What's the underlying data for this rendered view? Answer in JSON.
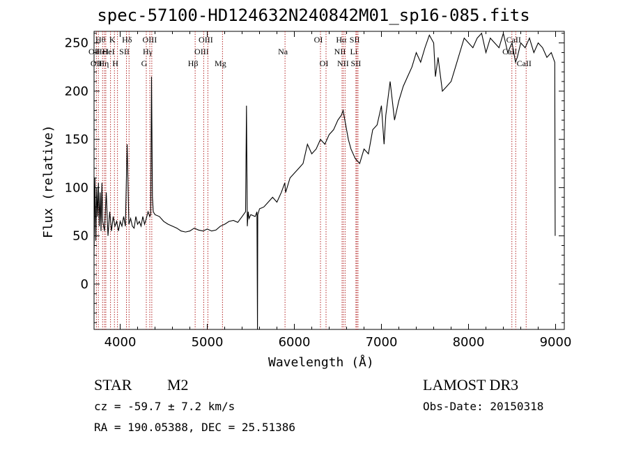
{
  "chart_data": {
    "type": "line",
    "title": "spec-57100-HD124632N240842M01_sp16-085.fits",
    "xlabel": "Wavelength (Å)",
    "ylabel": "Flux (relative)",
    "xlim": [
      3700,
      9100
    ],
    "ylim": [
      -47,
      262
    ],
    "xticks": [
      4000,
      5000,
      6000,
      7000,
      8000,
      9000
    ],
    "yticks": [
      0,
      50,
      100,
      150,
      200,
      250
    ],
    "grid": false,
    "series": [
      {
        "x": [
          3700,
          3710,
          3720,
          3730,
          3740,
          3750,
          3760,
          3770,
          3780,
          3790,
          3800,
          3820,
          3840,
          3860,
          3880,
          3900,
          3920,
          3940,
          3960,
          3980,
          4000,
          4020,
          4040,
          4060,
          4080,
          4100,
          4120,
          4140,
          4160,
          4180,
          4200,
          4220,
          4240,
          4260,
          4280,
          4300,
          4320,
          4340,
          4350,
          4360,
          4370,
          4380,
          4400,
          4450,
          4500,
          4550,
          4600,
          4650,
          4700,
          4750,
          4800,
          4850,
          4900,
          4950,
          5000,
          5050,
          5100,
          5150,
          5200,
          5250,
          5300,
          5350,
          5400,
          5440,
          5450,
          5460,
          5470,
          5480,
          5500,
          5550,
          5570,
          5577,
          5580,
          5590,
          5600,
          5650,
          5700,
          5750,
          5800,
          5850,
          5890,
          5900,
          5950,
          6000,
          6050,
          6100,
          6150,
          6200,
          6250,
          6300,
          6350,
          6400,
          6450,
          6500,
          6540,
          6560,
          6580,
          6600,
          6620,
          6650,
          6700,
          6750,
          6800,
          6850,
          6900,
          6950,
          7000,
          7030,
          7050,
          7100,
          7150,
          7200,
          7250,
          7300,
          7350,
          7400,
          7450,
          7500,
          7550,
          7600,
          7620,
          7650,
          7700,
          7750,
          7800,
          7850,
          7900,
          7950,
          8000,
          8050,
          8100,
          8150,
          8200,
          8250,
          8300,
          8350,
          8400,
          8450,
          8500,
          8540,
          8560,
          8600,
          8650,
          8700,
          8750,
          8800,
          8850,
          8900,
          8950,
          8990,
          8995
        ],
        "y": [
          30,
          110,
          45,
          100,
          70,
          105,
          60,
          95,
          55,
          105,
          65,
          55,
          95,
          50,
          75,
          55,
          70,
          60,
          65,
          55,
          65,
          60,
          70,
          60,
          145,
          62,
          68,
          60,
          58,
          70,
          62,
          65,
          60,
          70,
          62,
          68,
          75,
          70,
          72,
          215,
          90,
          75,
          72,
          70,
          65,
          62,
          60,
          58,
          55,
          54,
          55,
          58,
          56,
          55,
          57,
          55,
          56,
          60,
          62,
          65,
          66,
          64,
          70,
          75,
          185,
          60,
          75,
          68,
          72,
          70,
          75,
          -50,
          72,
          75,
          78,
          80,
          85,
          90,
          85,
          95,
          105,
          95,
          110,
          115,
          120,
          125,
          145,
          135,
          140,
          150,
          145,
          155,
          160,
          170,
          175,
          180,
          170,
          160,
          150,
          140,
          130,
          125,
          140,
          135,
          160,
          165,
          185,
          145,
          175,
          210,
          170,
          190,
          205,
          215,
          225,
          240,
          230,
          245,
          258,
          250,
          215,
          235,
          200,
          205,
          210,
          225,
          240,
          255,
          250,
          245,
          255,
          260,
          240,
          255,
          250,
          245,
          260,
          240,
          250,
          230,
          235,
          250,
          245,
          255,
          240,
          250,
          245,
          235,
          240,
          230,
          50
        ]
      }
    ],
    "lines": [
      {
        "x": 3727,
        "label": "OII",
        "row": 2
      },
      {
        "x": 3750,
        "label": "OII",
        "row": 3
      },
      {
        "x": 3798,
        "label": "Hθ",
        "row": 1
      },
      {
        "x": 3820,
        "label": "HeI",
        "row": 2
      },
      {
        "x": 3835,
        "label": "Hη",
        "row": 3
      },
      {
        "x": 3889,
        "label": "HeI",
        "row": 2
      },
      {
        "x": 3934,
        "label": "K",
        "row": 1
      },
      {
        "x": 3969,
        "label": "H",
        "row": 3
      },
      {
        "x": 4072,
        "label": "SII",
        "row": 2
      },
      {
        "x": 4102,
        "label": "Hδ",
        "row": 1
      },
      {
        "x": 4300,
        "label": "G",
        "row": 3
      },
      {
        "x": 4340,
        "label": "Hγ",
        "row": 2
      },
      {
        "x": 4363,
        "label": "OIII",
        "row": 1
      },
      {
        "x": 4861,
        "label": "Hβ",
        "row": 3
      },
      {
        "x": 4959,
        "label": "OIII",
        "row": 2
      },
      {
        "x": 5007,
        "label": "OIII",
        "row": 1
      },
      {
        "x": 5175,
        "label": "Mg",
        "row": 3
      },
      {
        "x": 5893,
        "label": "Na",
        "row": 2
      },
      {
        "x": 6300,
        "label": "OI",
        "row": 1
      },
      {
        "x": 6364,
        "label": "OI",
        "row": 3
      },
      {
        "x": 6548,
        "label": "NII",
        "row": 2
      },
      {
        "x": 6563,
        "label": "Hα",
        "row": 1
      },
      {
        "x": 6583,
        "label": "NII",
        "row": 3
      },
      {
        "x": 6707,
        "label": "Li",
        "row": 2
      },
      {
        "x": 6717,
        "label": "SII",
        "row": 1
      },
      {
        "x": 6731,
        "label": "SII",
        "row": 3
      },
      {
        "x": 8498,
        "label": "CaII",
        "row": 2
      },
      {
        "x": 8542,
        "label": "CaII",
        "row": 1
      },
      {
        "x": 8662,
        "label": "CaII",
        "row": 3
      }
    ]
  },
  "annotations": {
    "object_class": "STAR",
    "subclass": "M2",
    "survey": "LAMOST DR3",
    "cz": "cz = -59.7 ± 7.2 km/s",
    "obs_date": "Obs-Date: 20150318",
    "radec": "RA = 190.05388, DEC =  25.51386"
  }
}
